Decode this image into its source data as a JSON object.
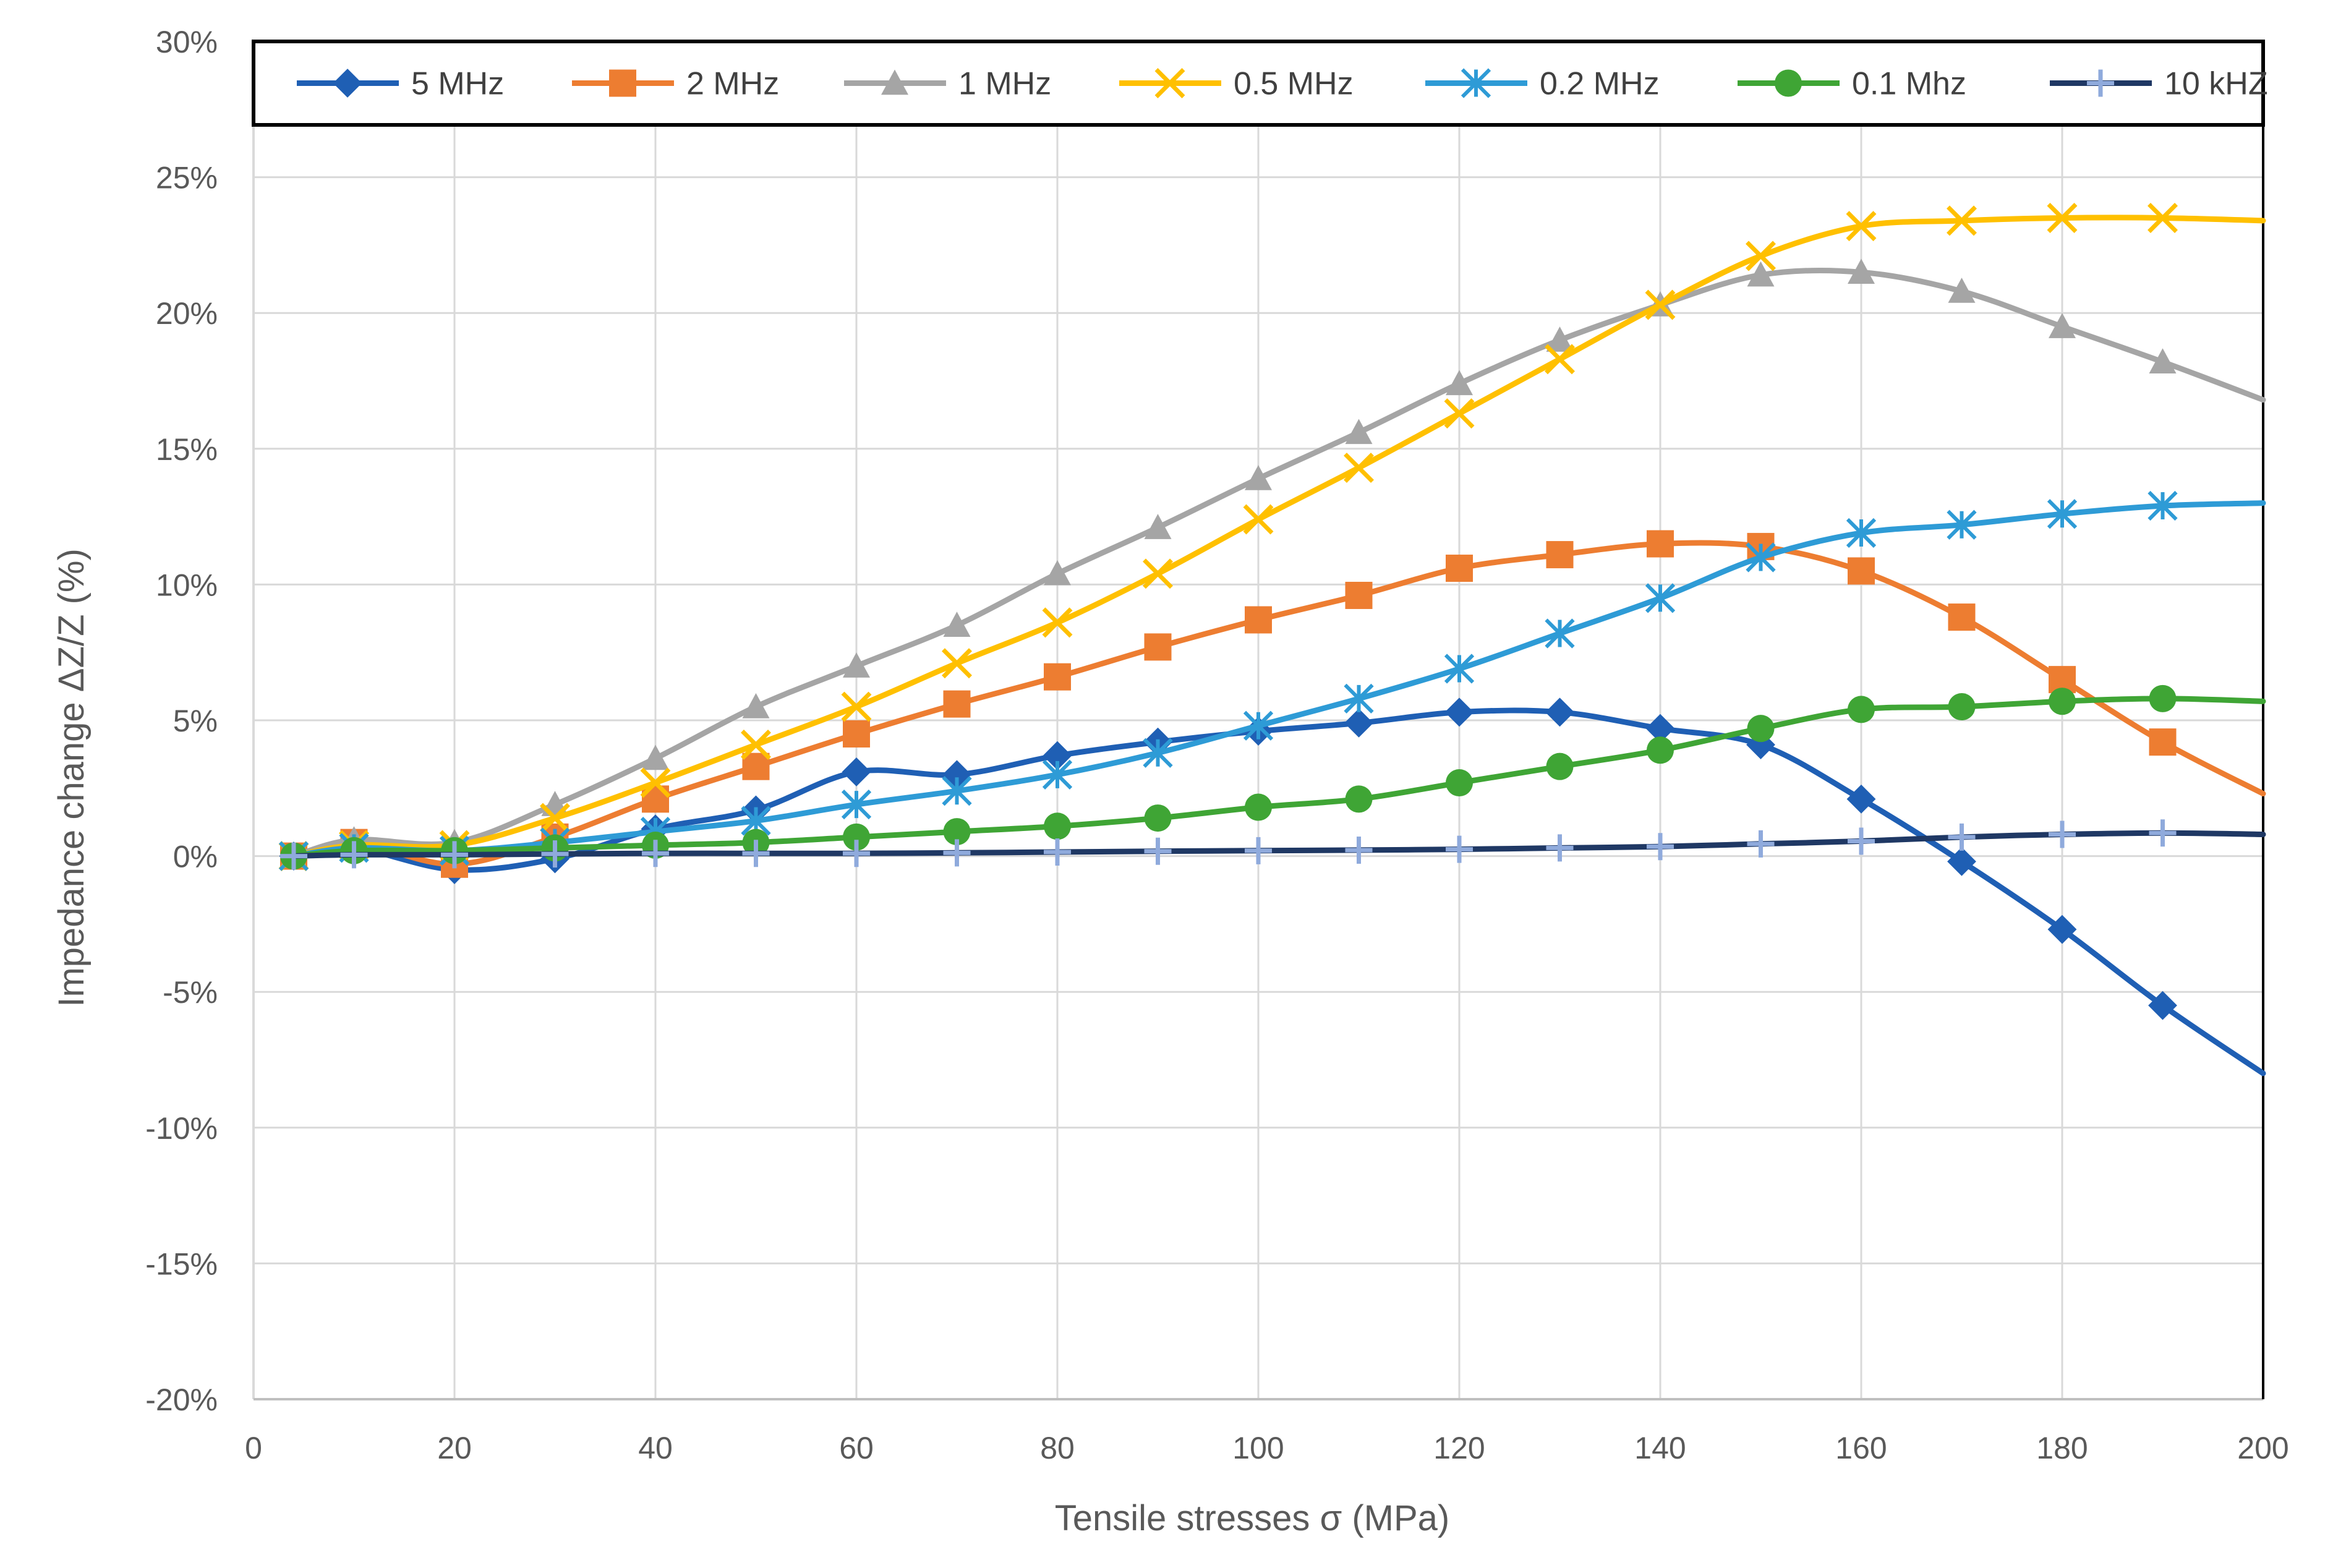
{
  "chart_data": {
    "type": "line",
    "title": "",
    "xlabel": "Tensile stresses σ (MPa)",
    "ylabel": "Impedance change ΔZ/Z (%)",
    "xlim": [
      0,
      200
    ],
    "ylim": [
      -20,
      30
    ],
    "x_ticks": [
      0,
      20,
      40,
      60,
      80,
      100,
      120,
      140,
      160,
      180,
      200
    ],
    "y_ticks": [
      -20,
      -15,
      -10,
      -5,
      0,
      5,
      10,
      15,
      20,
      25,
      30
    ],
    "x_tick_labels": [
      "0",
      "20",
      "40",
      "60",
      "80",
      "100",
      "120",
      "140",
      "160",
      "180",
      "200"
    ],
    "y_tick_labels": [
      "-20%",
      "-15%",
      "-10%",
      "-5%",
      "0%",
      "5%",
      "10%",
      "15%",
      "20%",
      "25%",
      "30%"
    ],
    "grid": true,
    "legend_position": "top",
    "x": [
      4,
      10,
      20,
      30,
      40,
      50,
      60,
      70,
      80,
      90,
      100,
      110,
      120,
      130,
      140,
      150,
      160,
      170,
      180,
      190,
      200
    ],
    "series": [
      {
        "name": "5 MHz",
        "color": "#1f5fb4",
        "marker": "diamond",
        "values": [
          0,
          0.3,
          -0.5,
          -0.1,
          1.0,
          1.7,
          3.1,
          3.0,
          3.7,
          4.2,
          4.6,
          4.9,
          5.3,
          5.3,
          4.7,
          4.1,
          2.1,
          -0.2,
          -2.7,
          -5.5,
          -8.0
        ]
      },
      {
        "name": "2 MHz",
        "color": "#ed7d31",
        "marker": "square",
        "values": [
          0,
          0.5,
          -0.3,
          0.7,
          2.1,
          3.3,
          4.5,
          5.6,
          6.6,
          7.7,
          8.7,
          9.6,
          10.6,
          11.1,
          11.5,
          11.4,
          10.5,
          8.8,
          6.5,
          4.2,
          2.3
        ]
      },
      {
        "name": "1 MHz",
        "color": "#a5a5a5",
        "marker": "triangle",
        "values": [
          0,
          0.6,
          0.5,
          1.9,
          3.6,
          5.5,
          7.0,
          8.5,
          10.4,
          12.1,
          13.9,
          15.6,
          17.4,
          19.0,
          20.3,
          21.4,
          21.5,
          20.8,
          19.5,
          18.2,
          16.8
        ]
      },
      {
        "name": "0.5 MHz",
        "color": "#ffc000",
        "marker": "x",
        "values": [
          0,
          0.4,
          0.4,
          1.4,
          2.7,
          4.1,
          5.5,
          7.1,
          8.6,
          10.4,
          12.4,
          14.3,
          16.3,
          18.3,
          20.3,
          22.1,
          23.2,
          23.4,
          23.5,
          23.5,
          23.4
        ]
      },
      {
        "name": "0.2 MHz",
        "color": "#2e9bd6",
        "marker": "asterisk",
        "values": [
          0,
          0.3,
          0.2,
          0.5,
          0.9,
          1.3,
          1.9,
          2.4,
          3.0,
          3.8,
          4.8,
          5.8,
          6.9,
          8.2,
          9.5,
          11.0,
          11.9,
          12.2,
          12.6,
          12.9,
          13.0
        ]
      },
      {
        "name": "0.1 Mhz",
        "color": "#3fa535",
        "marker": "circle",
        "values": [
          0,
          0.2,
          0.2,
          0.3,
          0.4,
          0.5,
          0.7,
          0.9,
          1.1,
          1.4,
          1.8,
          2.1,
          2.7,
          3.3,
          3.9,
          4.7,
          5.4,
          5.5,
          5.7,
          5.8,
          5.7
        ]
      },
      {
        "name": "10 kHZ",
        "color": "#1f3864",
        "marker": "plus",
        "marker_color": "#8faadc",
        "values": [
          0,
          0.05,
          0.05,
          0.08,
          0.1,
          0.1,
          0.1,
          0.12,
          0.15,
          0.18,
          0.2,
          0.22,
          0.25,
          0.3,
          0.35,
          0.45,
          0.55,
          0.7,
          0.8,
          0.85,
          0.8
        ]
      }
    ]
  }
}
